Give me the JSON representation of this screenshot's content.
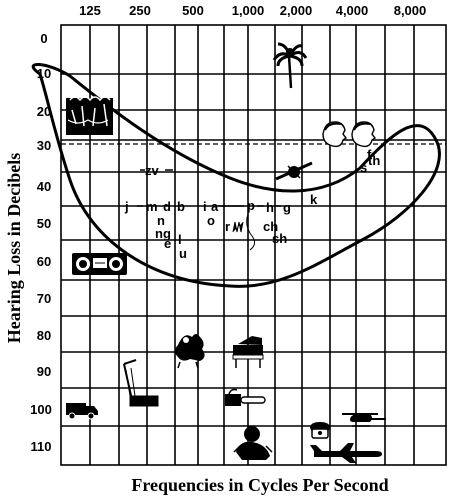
{
  "x_axis": {
    "title": "Frequencies in Cycles Per Second",
    "ticks": [
      "125",
      "250",
      "500",
      "1,000",
      "2,000",
      "4,000",
      "8,000"
    ]
  },
  "y_axis": {
    "title": "Hearing Loss in Decibels",
    "ticks": [
      "0",
      "10",
      "20",
      "30",
      "40",
      "50",
      "60",
      "70",
      "80",
      "90",
      "100",
      "110"
    ]
  },
  "speech_sounds": [
    {
      "text": "zv"
    },
    {
      "text": "j"
    },
    {
      "text": "m"
    },
    {
      "text": "d"
    },
    {
      "text": "b"
    },
    {
      "text": "n"
    },
    {
      "text": "ng"
    },
    {
      "text": "e"
    },
    {
      "text": "l"
    },
    {
      "text": "u"
    },
    {
      "text": "i"
    },
    {
      "text": "a"
    },
    {
      "text": "o"
    },
    {
      "text": "r"
    },
    {
      "text": "p"
    },
    {
      "text": "h"
    },
    {
      "text": "g"
    },
    {
      "text": "ch"
    },
    {
      "text": "sh"
    },
    {
      "text": "k"
    },
    {
      "text": "f"
    },
    {
      "text": "s"
    },
    {
      "text": "th"
    }
  ],
  "icons": [
    "leaves-icon",
    "radio-icon",
    "tree-icon",
    "faces-icon",
    "fan-icon",
    "bird-icon",
    "piano-icon",
    "truck-icon",
    "lawnmower-icon",
    "chainsaw-icon",
    "telephone-icon",
    "helicopter-icon",
    "airplane-icon",
    "baby-icon"
  ]
}
